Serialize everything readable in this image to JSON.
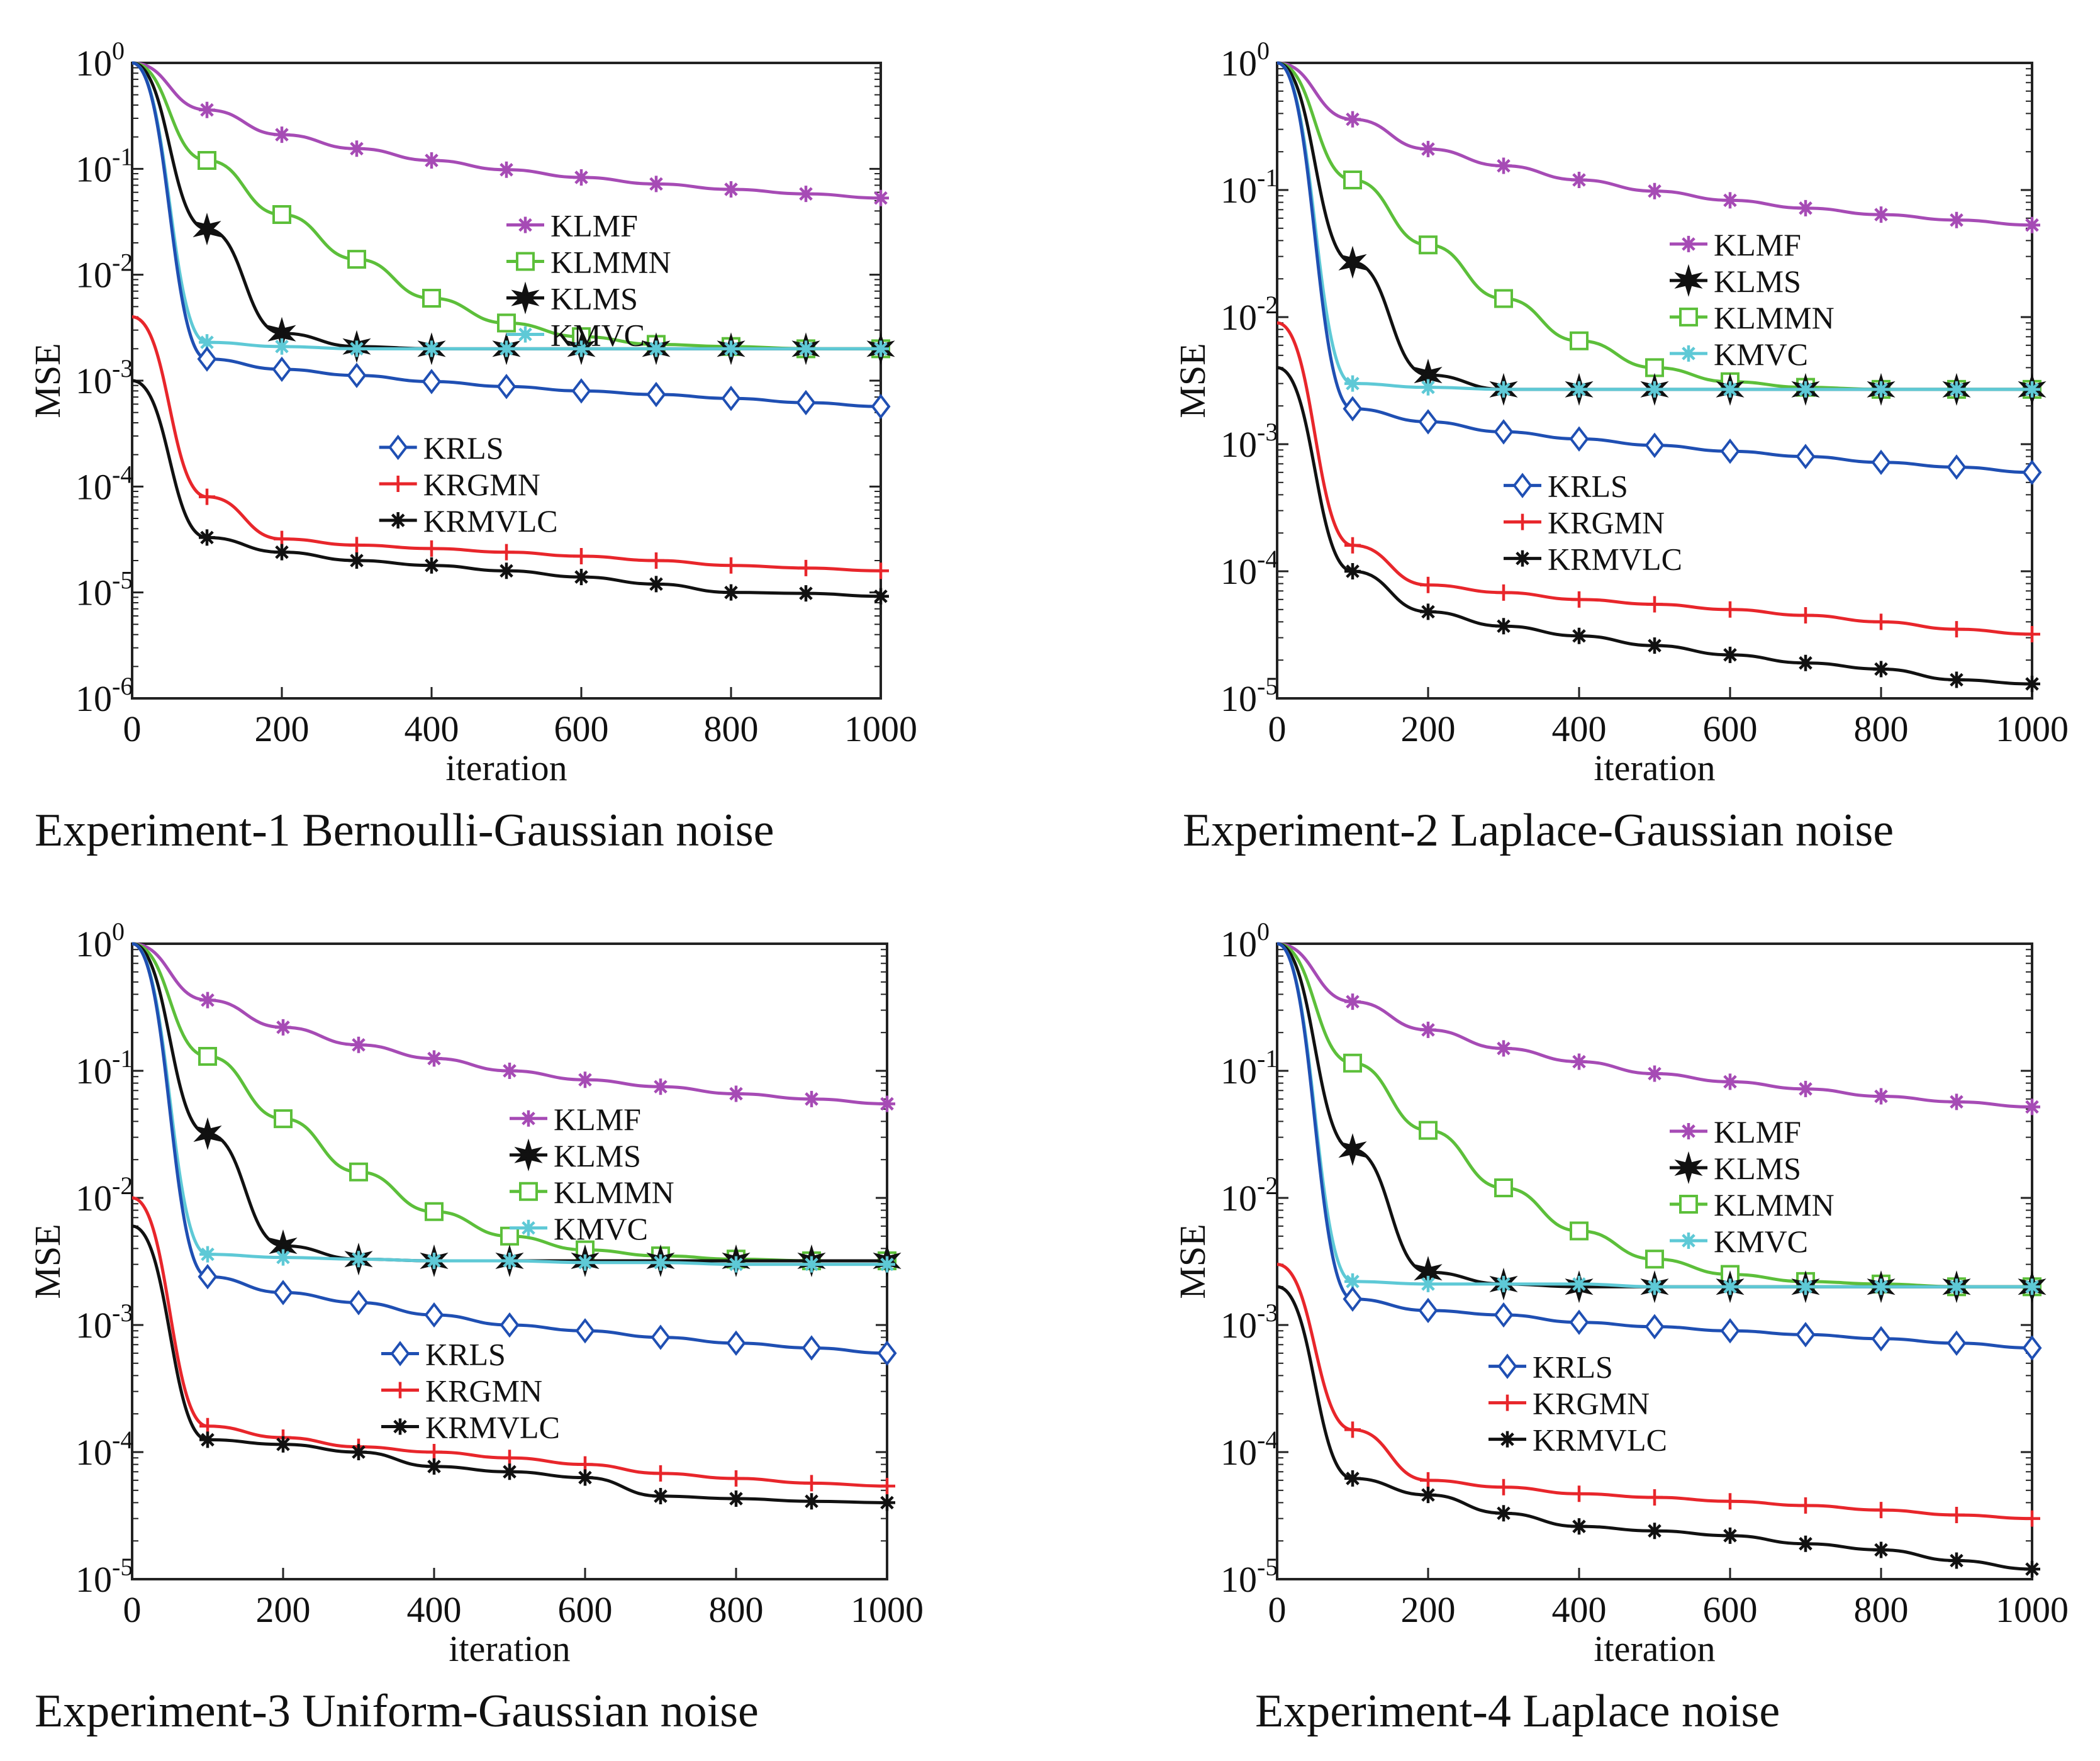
{
  "colors": {
    "KLMF": "#a64bb5",
    "KLMMN": "#5cbf3a",
    "KLMS": "#111111",
    "KMVC": "#5ec9d6",
    "KRLS": "#1f4fb3",
    "KRGMN": "#e8262b",
    "KRMVLC": "#111111"
  },
  "markers": {
    "KLMF": "asterisk",
    "KLMMN": "square",
    "KLMS": "star",
    "KMVC": "x-asterisk",
    "KRLS": "diamond",
    "KRGMN": "plus",
    "KRMVLC": "asterisk"
  },
  "captions": [
    "Experiment-1 Bernoulli-Gaussian noise",
    "Experiment-2 Laplace-Gaussian noise",
    "Experiment-3 Uniform-Gaussian noise",
    "Experiment-4 Laplace noise"
  ],
  "chart_data": [
    {
      "type": "line",
      "xlabel": "iteration",
      "ylabel": "MSE",
      "yscale": "log",
      "xlim": [
        0,
        1000
      ],
      "ylim": [
        1e-06,
        1
      ],
      "x_ticks": [
        "0",
        "200",
        "400",
        "600",
        "800",
        "1000"
      ],
      "y_ticks": [
        {
          "base": "10",
          "exp": "0"
        },
        {
          "base": "10",
          "exp": "-1"
        },
        {
          "base": "10",
          "exp": "-2"
        },
        {
          "base": "10",
          "exp": "-3"
        },
        {
          "base": "10",
          "exp": "-4"
        },
        {
          "base": "10",
          "exp": "-5"
        },
        {
          "base": "10",
          "exp": "-6"
        }
      ],
      "legend_groups": [
        {
          "placement": "upper-center",
          "items": [
            "KLMF",
            "KLMMN",
            "KLMS",
            "KMVC"
          ]
        },
        {
          "placement": "center-left",
          "items": [
            "KRLS",
            "KRGMN",
            "KRMVLC"
          ]
        }
      ],
      "x": [
        0,
        100,
        200,
        300,
        400,
        500,
        600,
        700,
        800,
        900,
        1000
      ],
      "series": [
        {
          "name": "KLMF",
          "values": [
            1,
            0.36,
            0.21,
            0.155,
            0.12,
            0.098,
            0.083,
            0.072,
            0.064,
            0.058,
            0.053
          ]
        },
        {
          "name": "KLMMN",
          "values": [
            1,
            0.12,
            0.037,
            0.014,
            0.006,
            0.0035,
            0.0026,
            0.0022,
            0.0021,
            0.002,
            0.002
          ]
        },
        {
          "name": "KLMS",
          "values": [
            1,
            0.027,
            0.0028,
            0.0021,
            0.002,
            0.002,
            0.002,
            0.002,
            0.002,
            0.002,
            0.002
          ]
        },
        {
          "name": "KMVC",
          "values": [
            1,
            0.0023,
            0.0021,
            0.002,
            0.002,
            0.002,
            0.002,
            0.002,
            0.002,
            0.002,
            0.002
          ]
        },
        {
          "name": "KRLS",
          "values": [
            1,
            0.0016,
            0.00128,
            0.00112,
            0.00098,
            0.00088,
            0.0008,
            0.00074,
            0.00068,
            0.00062,
            0.00057
          ]
        },
        {
          "name": "KRGMN",
          "values": [
            0.004,
            8e-05,
            3.2e-05,
            2.8e-05,
            2.6e-05,
            2.4e-05,
            2.2e-05,
            2e-05,
            1.8e-05,
            1.7e-05,
            1.6e-05
          ]
        },
        {
          "name": "KRMVLC",
          "values": [
            0.001,
            3.3e-05,
            2.4e-05,
            2e-05,
            1.8e-05,
            1.6e-05,
            1.4e-05,
            1.2e-05,
            1e-05,
            9.8e-06,
            9.2e-06
          ]
        }
      ]
    },
    {
      "type": "line",
      "xlabel": "iteration",
      "ylabel": "MSE",
      "yscale": "log",
      "xlim": [
        0,
        1000
      ],
      "ylim": [
        1e-05,
        1
      ],
      "x_ticks": [
        "0",
        "200",
        "400",
        "600",
        "800",
        "1000"
      ],
      "y_ticks": [
        {
          "base": "10",
          "exp": "0"
        },
        {
          "base": "10",
          "exp": "-1"
        },
        {
          "base": "10",
          "exp": "-2"
        },
        {
          "base": "10",
          "exp": "-3"
        },
        {
          "base": "10",
          "exp": "-4"
        },
        {
          "base": "10",
          "exp": "-5"
        }
      ],
      "legend_groups": [
        {
          "placement": "upper-right",
          "items": [
            "KLMF",
            "KLMS",
            "KLMMN",
            "KMVC"
          ]
        },
        {
          "placement": "lower-center",
          "items": [
            "KRLS",
            "KRGMN",
            "KRMVLC"
          ]
        }
      ],
      "x": [
        0,
        100,
        200,
        300,
        400,
        500,
        600,
        700,
        800,
        900,
        1000
      ],
      "series": [
        {
          "name": "KLMF",
          "values": [
            1,
            0.36,
            0.21,
            0.155,
            0.12,
            0.098,
            0.083,
            0.072,
            0.064,
            0.058,
            0.053
          ]
        },
        {
          "name": "KLMS",
          "values": [
            1,
            0.027,
            0.0035,
            0.0027,
            0.0027,
            0.0027,
            0.0027,
            0.0027,
            0.0027,
            0.0027,
            0.0027
          ]
        },
        {
          "name": "KLMMN",
          "values": [
            1,
            0.12,
            0.037,
            0.014,
            0.0065,
            0.004,
            0.0031,
            0.0028,
            0.0027,
            0.0027,
            0.0027
          ]
        },
        {
          "name": "KMVC",
          "values": [
            1,
            0.003,
            0.0028,
            0.0027,
            0.0027,
            0.0027,
            0.0027,
            0.0027,
            0.0027,
            0.0027,
            0.0027
          ]
        },
        {
          "name": "KRLS",
          "values": [
            1,
            0.0019,
            0.0015,
            0.00125,
            0.0011,
            0.00098,
            0.00088,
            0.0008,
            0.00072,
            0.00066,
            0.0006
          ]
        },
        {
          "name": "KRGMN",
          "values": [
            0.009,
            0.00016,
            7.8e-05,
            6.8e-05,
            6e-05,
            5.5e-05,
            5e-05,
            4.5e-05,
            4e-05,
            3.5e-05,
            3.2e-05
          ]
        },
        {
          "name": "KRMVLC",
          "values": [
            0.004,
            0.0001,
            4.8e-05,
            3.7e-05,
            3.1e-05,
            2.6e-05,
            2.2e-05,
            1.9e-05,
            1.7e-05,
            1.4e-05,
            1.3e-05
          ]
        }
      ]
    },
    {
      "type": "line",
      "xlabel": "iteration",
      "ylabel": "MSE",
      "yscale": "log",
      "xlim": [
        0,
        1000
      ],
      "ylim": [
        1e-05,
        1
      ],
      "x_ticks": [
        "0",
        "200",
        "400",
        "600",
        "800",
        "1000"
      ],
      "y_ticks": [
        {
          "base": "10",
          "exp": "0"
        },
        {
          "base": "10",
          "exp": "-1"
        },
        {
          "base": "10",
          "exp": "-2"
        },
        {
          "base": "10",
          "exp": "-3"
        },
        {
          "base": "10",
          "exp": "-4"
        },
        {
          "base": "10",
          "exp": "-5"
        }
      ],
      "legend_groups": [
        {
          "placement": "upper-center",
          "items": [
            "KLMF",
            "KLMS",
            "KLMMN",
            "KMVC"
          ]
        },
        {
          "placement": "lower-center",
          "items": [
            "KRLS",
            "KRGMN",
            "KRMVLC"
          ]
        }
      ],
      "x": [
        0,
        100,
        200,
        300,
        400,
        500,
        600,
        700,
        800,
        900,
        1000
      ],
      "series": [
        {
          "name": "KLMF",
          "values": [
            1,
            0.36,
            0.22,
            0.16,
            0.125,
            0.1,
            0.085,
            0.075,
            0.066,
            0.06,
            0.055
          ]
        },
        {
          "name": "KLMS",
          "values": [
            1,
            0.032,
            0.0042,
            0.0033,
            0.0032,
            0.0032,
            0.0032,
            0.0032,
            0.0032,
            0.0032,
            0.0032
          ]
        },
        {
          "name": "KLMMN",
          "values": [
            1,
            0.13,
            0.042,
            0.016,
            0.0078,
            0.005,
            0.0039,
            0.0035,
            0.0033,
            0.0032,
            0.0032
          ]
        },
        {
          "name": "KMVC",
          "values": [
            1,
            0.0036,
            0.0034,
            0.0033,
            0.0032,
            0.0032,
            0.0031,
            0.0031,
            0.003,
            0.003,
            0.003
          ]
        },
        {
          "name": "KRLS",
          "values": [
            1,
            0.0024,
            0.0018,
            0.0015,
            0.0012,
            0.001,
            0.0009,
            0.0008,
            0.00072,
            0.00066,
            0.0006
          ]
        },
        {
          "name": "KRGMN",
          "values": [
            0.01,
            0.00016,
            0.00013,
            0.00011,
            0.0001,
            9e-05,
            8e-05,
            6.8e-05,
            6.2e-05,
            5.7e-05,
            5.4e-05
          ]
        },
        {
          "name": "KRMVLC",
          "values": [
            0.006,
            0.000125,
            0.000115,
            0.0001,
            7.7e-05,
            7e-05,
            6.3e-05,
            4.5e-05,
            4.3e-05,
            4.1e-05,
            4e-05
          ]
        }
      ]
    },
    {
      "type": "line",
      "xlabel": "iteration",
      "ylabel": "MSE",
      "yscale": "log",
      "xlim": [
        0,
        1000
      ],
      "ylim": [
        1e-05,
        1
      ],
      "x_ticks": [
        "0",
        "200",
        "400",
        "600",
        "800",
        "1000"
      ],
      "y_ticks": [
        {
          "base": "10",
          "exp": "0"
        },
        {
          "base": "10",
          "exp": "-1"
        },
        {
          "base": "10",
          "exp": "-2"
        },
        {
          "base": "10",
          "exp": "-3"
        },
        {
          "base": "10",
          "exp": "-4"
        },
        {
          "base": "10",
          "exp": "-5"
        }
      ],
      "legend_groups": [
        {
          "placement": "upper-right",
          "items": [
            "KLMF",
            "KLMS",
            "KLMMN",
            "KMVC"
          ]
        },
        {
          "placement": "lower-center",
          "items": [
            "KRLS",
            "KRGMN",
            "KRMVLC"
          ]
        }
      ],
      "x": [
        0,
        100,
        200,
        300,
        400,
        500,
        600,
        700,
        800,
        900,
        1000
      ],
      "series": [
        {
          "name": "KLMF",
          "values": [
            1,
            0.35,
            0.21,
            0.15,
            0.118,
            0.095,
            0.082,
            0.072,
            0.063,
            0.057,
            0.052
          ]
        },
        {
          "name": "KLMS",
          "values": [
            1,
            0.024,
            0.0026,
            0.0021,
            0.002,
            0.002,
            0.002,
            0.002,
            0.002,
            0.002,
            0.002
          ]
        },
        {
          "name": "KLMMN",
          "values": [
            1,
            0.115,
            0.034,
            0.012,
            0.0055,
            0.0033,
            0.0025,
            0.0022,
            0.0021,
            0.002,
            0.002
          ]
        },
        {
          "name": "KMVC",
          "values": [
            1,
            0.0022,
            0.0021,
            0.0021,
            0.0021,
            0.002,
            0.002,
            0.002,
            0.002,
            0.002,
            0.002
          ]
        },
        {
          "name": "KRLS",
          "values": [
            1,
            0.0016,
            0.0013,
            0.0012,
            0.00105,
            0.00097,
            0.0009,
            0.00084,
            0.00078,
            0.00072,
            0.00066
          ]
        },
        {
          "name": "KRGMN",
          "values": [
            0.003,
            0.00015,
            6e-05,
            5.3e-05,
            4.7e-05,
            4.4e-05,
            4.1e-05,
            3.8e-05,
            3.5e-05,
            3.2e-05,
            3e-05
          ]
        },
        {
          "name": "KRMVLC",
          "values": [
            0.002,
            6.2e-05,
            4.6e-05,
            3.3e-05,
            2.6e-05,
            2.4e-05,
            2.2e-05,
            1.9e-05,
            1.7e-05,
            1.4e-05,
            1.2e-05
          ]
        }
      ]
    }
  ]
}
